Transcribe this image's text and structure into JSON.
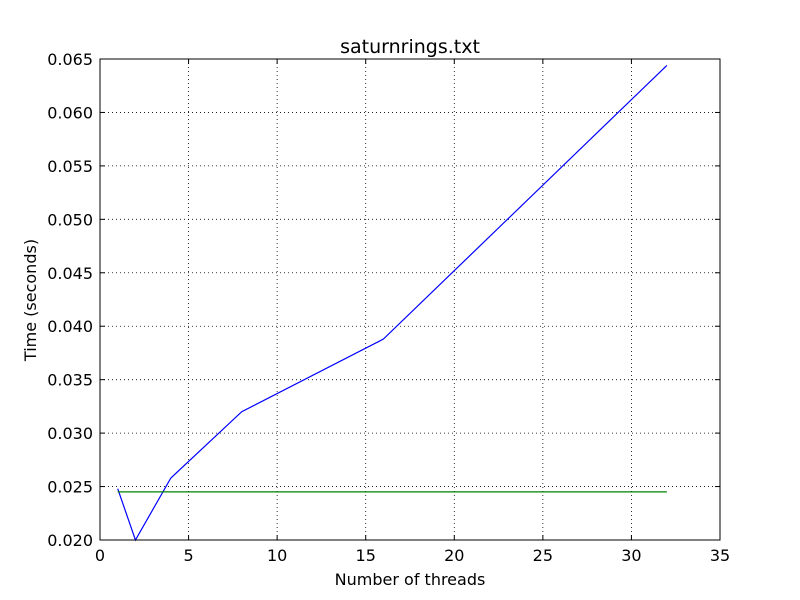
{
  "chart_data": {
    "type": "line",
    "title": "saturnrings.txt",
    "xlabel": "Number of threads",
    "ylabel": "Time (seconds)",
    "xlim": [
      0,
      35
    ],
    "ylim": [
      0.02,
      0.065
    ],
    "xticks": [
      0,
      5,
      10,
      15,
      20,
      25,
      30,
      35
    ],
    "yticks": [
      0.02,
      0.025,
      0.03,
      0.035,
      0.04,
      0.045,
      0.05,
      0.055,
      0.06,
      0.065
    ],
    "ytick_labels": [
      "0.020",
      "0.025",
      "0.030",
      "0.035",
      "0.040",
      "0.045",
      "0.050",
      "0.055",
      "0.060",
      "0.065"
    ],
    "grid": true,
    "series": [
      {
        "color": "#0000ff",
        "x": [
          1,
          2,
          4,
          8,
          16,
          32
        ],
        "y": [
          0.0248,
          0.02,
          0.0258,
          0.032,
          0.0388,
          0.0644
        ]
      },
      {
        "color": "#008000",
        "x": [
          1,
          32
        ],
        "y": [
          0.0245,
          0.0245
        ]
      }
    ]
  }
}
